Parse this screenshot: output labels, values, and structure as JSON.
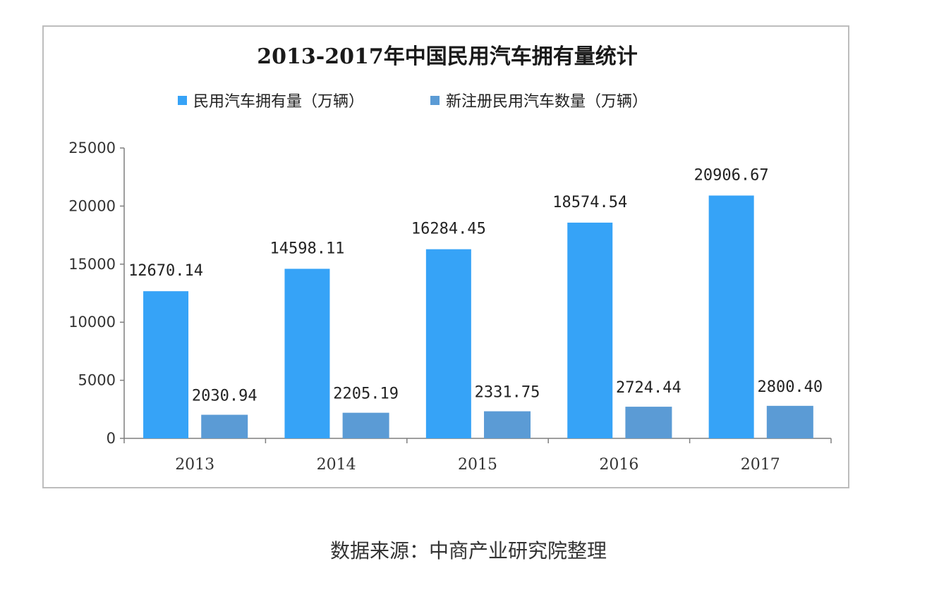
{
  "chart_data": {
    "type": "bar",
    "title": "2013-2017年中国民用汽车拥有量统计",
    "categories": [
      "2013",
      "2014",
      "2015",
      "2016",
      "2017"
    ],
    "series": [
      {
        "name": "民用汽车拥有量（万辆）",
        "values": [
          12670.14,
          14598.11,
          16284.45,
          18574.54,
          20906.67
        ],
        "labels": [
          "12670.14",
          "14598.11",
          "16284.45",
          "18574.54",
          "20906.67"
        ],
        "color": "#36a3f7"
      },
      {
        "name": "新注册民用汽车数量（万辆）",
        "values": [
          2030.94,
          2205.19,
          2331.75,
          2724.44,
          2800.4
        ],
        "labels": [
          "2030.94",
          "2205.19",
          "2331.75",
          "2724.44",
          "2800.40"
        ],
        "color": "#5b9bd5"
      }
    ],
    "ylim": [
      0,
      25000
    ],
    "yticks": [
      0,
      5000,
      10000,
      15000,
      20000,
      25000
    ],
    "xlabel": "",
    "ylabel": "",
    "grid": false,
    "legend_position": "top-center"
  },
  "footer": {
    "source": "数据来源：中商产业研究院整理"
  }
}
